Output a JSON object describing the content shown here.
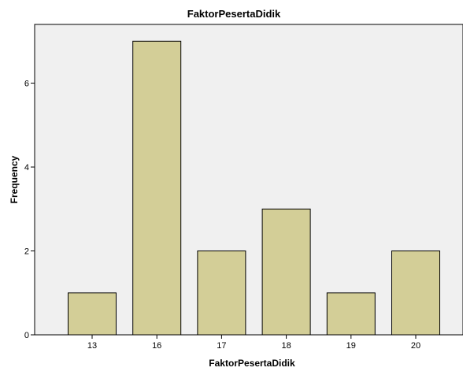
{
  "chart_data": {
    "type": "bar",
    "title": "FaktorPesertaDidik",
    "xlabel": "FaktorPesertaDidik",
    "ylabel": "Frequency",
    "categories": [
      "13",
      "16",
      "17",
      "18",
      "19",
      "20"
    ],
    "values": [
      1,
      7,
      2,
      3,
      1,
      2
    ],
    "ylim": [
      0,
      7.4
    ],
    "yticks": [
      "0",
      "2",
      "4",
      "6"
    ],
    "grid": false,
    "legend": "none"
  },
  "colors": {
    "plot_background": "#f0f0f0",
    "bar_fill": "#d3ce97",
    "bar_stroke": "#000000",
    "axis": "#000000"
  }
}
